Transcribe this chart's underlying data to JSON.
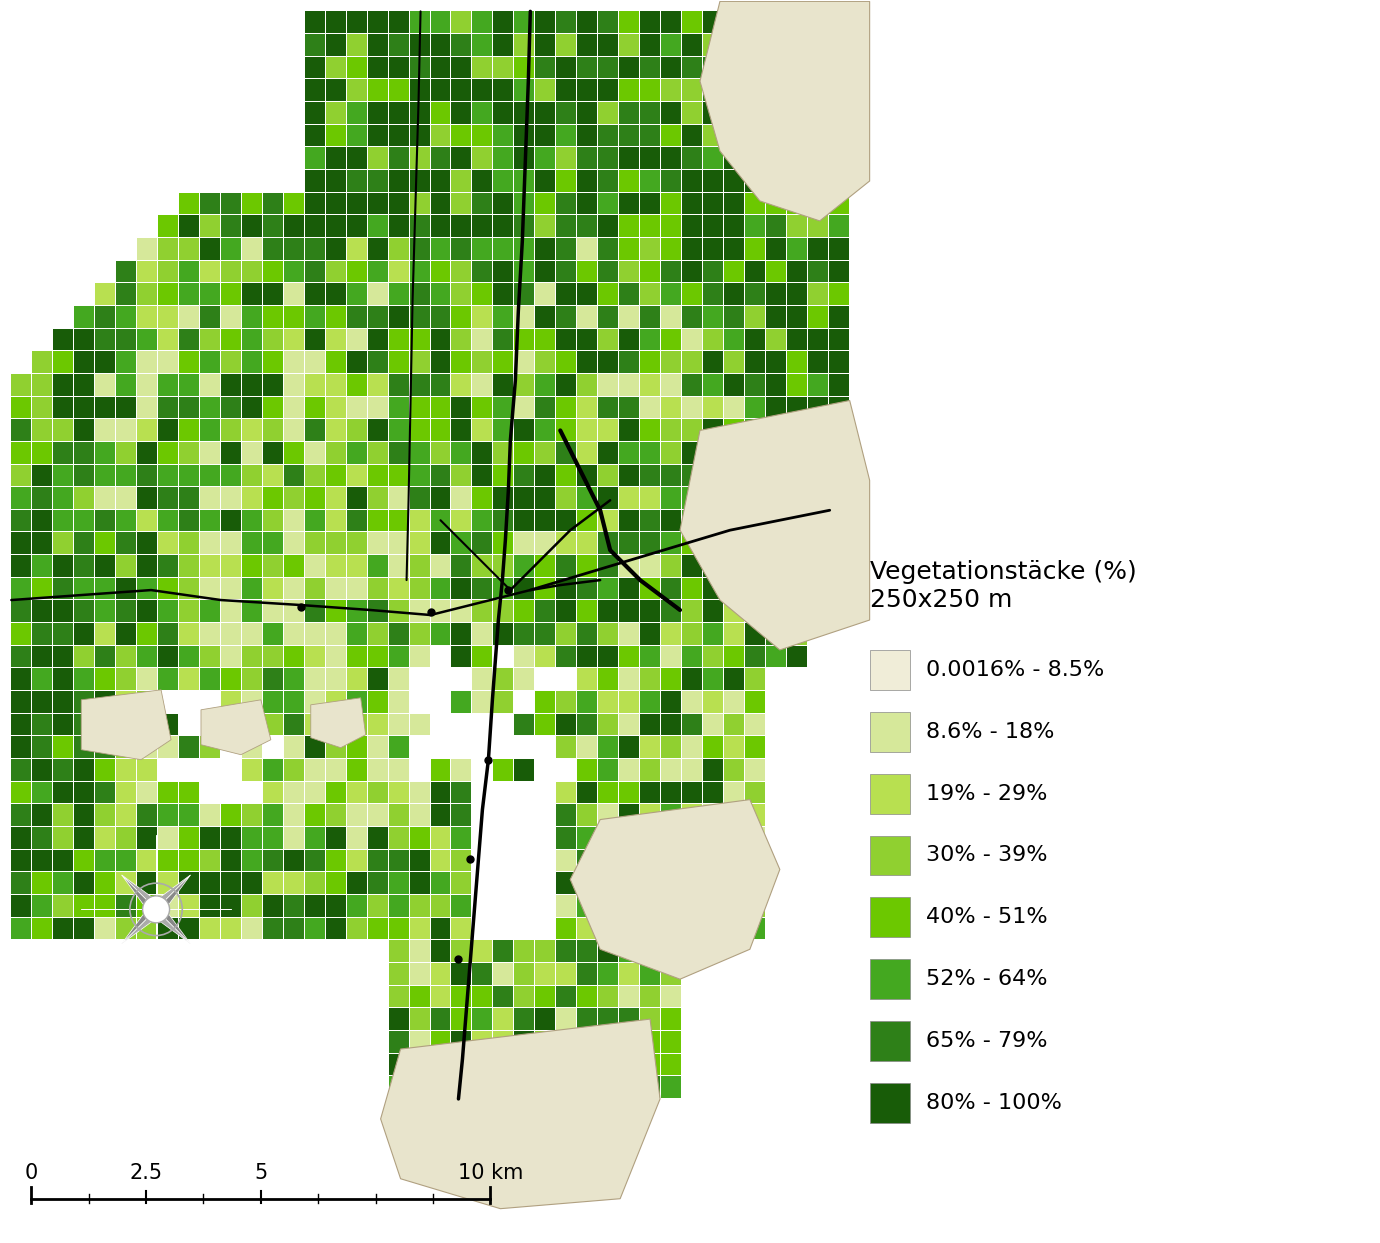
{
  "legend_title_line1": "Vegetationstäcke (%)",
  "legend_title_line2": "250x250 m",
  "legend_items": [
    {
      "label": "0.0016% - 8.5%",
      "color": "#f0edd8"
    },
    {
      "label": "8.6% - 18%",
      "color": "#d6e89a"
    },
    {
      "label": "19% - 29%",
      "color": "#b8e050"
    },
    {
      "label": "30% - 39%",
      "color": "#90d030"
    },
    {
      "label": "40% - 51%",
      "color": "#6cc800"
    },
    {
      "label": "52% - 64%",
      "color": "#44a820"
    },
    {
      "label": "65% - 79%",
      "color": "#2e8018"
    },
    {
      "label": "80% - 100%",
      "color": "#185c08"
    }
  ],
  "background_color": "#ffffff",
  "map_boundary_color": "#b0a080",
  "boundary_fill": "#e8e4cc",
  "compass_color": "#aaaaaa",
  "road_color": "#000000",
  "scale_bar_color": "#000000"
}
